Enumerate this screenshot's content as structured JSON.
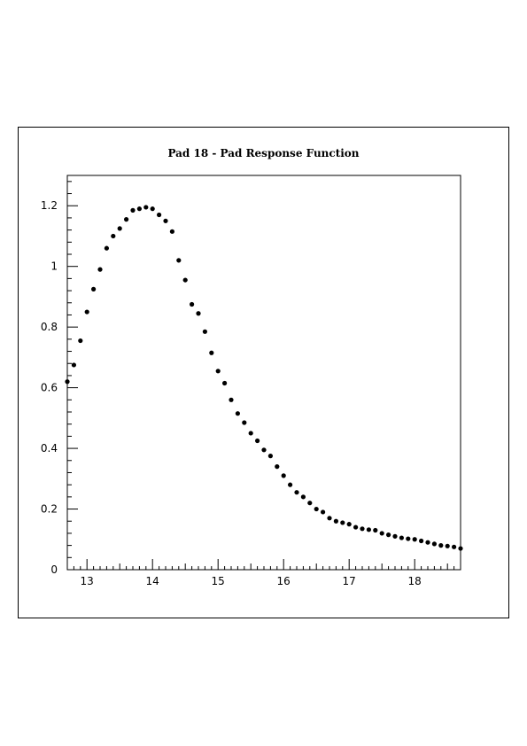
{
  "chart_data": {
    "type": "scatter",
    "title": "Pad 18 - Pad Response Function",
    "xlabel": "",
    "ylabel": "",
    "xlim": [
      12.7,
      18.7
    ],
    "ylim": [
      0,
      1.3
    ],
    "xticks": [
      13,
      14,
      15,
      16,
      17,
      18
    ],
    "xtick_labels": [
      "13",
      "14",
      "15",
      "16",
      "17",
      "18"
    ],
    "yticks": [
      0,
      0.2,
      0.4,
      0.6,
      0.8,
      1.0,
      1.2
    ],
    "ytick_labels": [
      "0",
      "0.2",
      "0.4",
      "0.6",
      "0.8",
      "1",
      "1.2"
    ],
    "grid": false,
    "marker_color": "#000000",
    "series": [
      {
        "x": [
          12.7,
          12.8,
          12.9,
          13.0,
          13.1,
          13.2,
          13.3,
          13.4,
          13.5,
          13.6,
          13.7,
          13.8,
          13.9,
          14.0,
          14.1,
          14.2,
          14.3,
          14.4,
          14.5,
          14.6,
          14.7,
          14.8,
          14.9,
          15.0,
          15.1,
          15.2,
          15.3,
          15.4,
          15.5,
          15.6,
          15.7,
          15.8,
          15.9,
          16.0,
          16.1,
          16.2,
          16.3,
          16.4,
          16.5,
          16.6,
          16.7,
          16.8,
          16.9,
          17.0,
          17.1,
          17.2,
          17.3,
          17.4,
          17.5,
          17.6,
          17.7,
          17.8,
          17.9,
          18.0,
          18.1,
          18.2,
          18.3,
          18.4,
          18.5,
          18.6,
          18.7
        ],
        "y": [
          0.62,
          0.675,
          0.755,
          0.85,
          0.925,
          0.99,
          1.06,
          1.1,
          1.125,
          1.155,
          1.185,
          1.19,
          1.195,
          1.19,
          1.17,
          1.15,
          1.115,
          1.02,
          0.955,
          0.875,
          0.845,
          0.785,
          0.715,
          0.655,
          0.615,
          0.56,
          0.515,
          0.485,
          0.45,
          0.425,
          0.395,
          0.375,
          0.34,
          0.31,
          0.28,
          0.255,
          0.24,
          0.22,
          0.2,
          0.19,
          0.17,
          0.16,
          0.155,
          0.15,
          0.14,
          0.135,
          0.132,
          0.13,
          0.12,
          0.115,
          0.11,
          0.105,
          0.102,
          0.1,
          0.095,
          0.09,
          0.085,
          0.08,
          0.078,
          0.075,
          0.07
        ]
      }
    ]
  }
}
